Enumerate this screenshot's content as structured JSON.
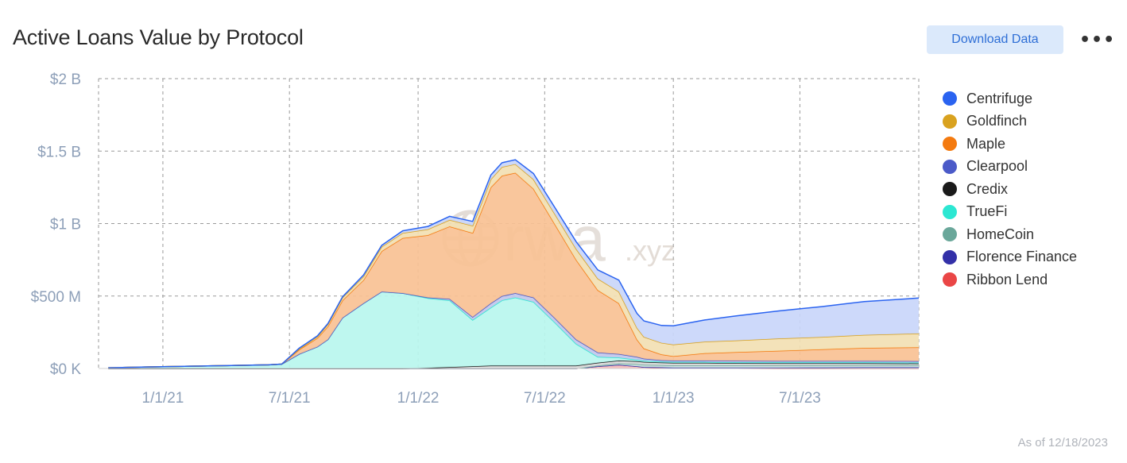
{
  "header": {
    "title": "Active Loans Value by Protocol",
    "download_label": "Download Data",
    "more_label": "•••"
  },
  "footer": {
    "as_of": "As of 12/18/2023"
  },
  "watermark": {
    "text": "rwa",
    "suffix": ".xyz"
  },
  "chart_data": {
    "type": "area",
    "stacked": true,
    "title": "Active Loans Value by Protocol",
    "xlabel": "",
    "ylabel": "",
    "x_axis": {
      "type": "date",
      "min": "2020-10-01",
      "max": "2023-12-18"
    },
    "ylim": [
      0,
      2000000000
    ],
    "y_ticks": [
      {
        "value": 0,
        "label": "$0 K"
      },
      {
        "value": 500000000,
        "label": "$500 M"
      },
      {
        "value": 1000000000,
        "label": "$1 B"
      },
      {
        "value": 1500000000,
        "label": "$1.5 B"
      },
      {
        "value": 2000000000,
        "label": "$2 B"
      }
    ],
    "x_ticks": [
      {
        "value": "2021-01-01",
        "label": "1/1/21"
      },
      {
        "value": "2021-07-01",
        "label": "7/1/21"
      },
      {
        "value": "2022-01-01",
        "label": "1/1/22"
      },
      {
        "value": "2022-07-01",
        "label": "7/1/22"
      },
      {
        "value": "2023-01-01",
        "label": "1/1/23"
      },
      {
        "value": "2023-07-01",
        "label": "7/1/23"
      }
    ],
    "grid": true,
    "legend_position": "right",
    "stack_order": [
      "Ribbon Lend",
      "Florence Finance",
      "HomeCoin",
      "Credix",
      "TrueFi",
      "Clearpool",
      "Maple",
      "Goldfinch",
      "Centrifuge"
    ],
    "x": [
      "2020-10-15",
      "2020-12-01",
      "2021-02-01",
      "2021-04-01",
      "2021-06-01",
      "2021-06-20",
      "2021-07-15",
      "2021-08-10",
      "2021-08-25",
      "2021-09-15",
      "2021-10-15",
      "2021-11-10",
      "2021-12-10",
      "2022-01-15",
      "2022-02-15",
      "2022-03-20",
      "2022-04-15",
      "2022-05-01",
      "2022-05-20",
      "2022-06-15",
      "2022-07-15",
      "2022-08-15",
      "2022-09-15",
      "2022-10-15",
      "2022-11-10",
      "2022-11-20",
      "2022-12-15",
      "2023-01-01",
      "2023-02-15",
      "2023-04-01",
      "2023-06-01",
      "2023-08-01",
      "2023-10-01",
      "2023-12-18"
    ],
    "series": [
      {
        "name": "Centrifuge",
        "color": "#2a63f0",
        "fill": "#c9d6fa",
        "values": [
          0,
          0,
          0,
          0,
          0,
          0,
          5,
          5,
          5,
          5,
          10,
          10,
          15,
          20,
          25,
          30,
          30,
          30,
          30,
          40,
          45,
          50,
          60,
          80,
          100,
          110,
          120,
          130,
          150,
          170,
          190,
          210,
          230,
          245
        ]
      },
      {
        "name": "Goldfinch",
        "color": "#d9a21f",
        "fill": "#f2dfb3",
        "values": [
          0,
          0,
          0,
          0,
          0,
          0,
          5,
          10,
          15,
          20,
          25,
          30,
          35,
          40,
          45,
          50,
          55,
          60,
          60,
          65,
          70,
          75,
          80,
          80,
          80,
          80,
          80,
          80,
          80,
          80,
          85,
          85,
          90,
          95
        ]
      },
      {
        "name": "Maple",
        "color": "#f47a0f",
        "fill": "#f9c194",
        "values": [
          0,
          0,
          0,
          0,
          0,
          0,
          30,
          60,
          90,
          120,
          160,
          280,
          380,
          430,
          500,
          580,
          800,
          830,
          830,
          750,
          650,
          550,
          430,
          350,
          120,
          70,
          40,
          30,
          50,
          60,
          70,
          80,
          90,
          95
        ]
      },
      {
        "name": "Clearpool",
        "color": "#4b5ac8",
        "fill": "#c2c7ec",
        "values": [
          0,
          0,
          0,
          0,
          0,
          0,
          0,
          0,
          0,
          0,
          0,
          0,
          0,
          5,
          10,
          20,
          30,
          30,
          30,
          30,
          30,
          30,
          30,
          25,
          20,
          15,
          10,
          10,
          10,
          10,
          10,
          10,
          10,
          10
        ]
      },
      {
        "name": "Credix",
        "color": "#1a1a1a",
        "fill": "#d8d8d8",
        "values": [
          0,
          0,
          0,
          0,
          0,
          0,
          0,
          0,
          0,
          0,
          0,
          0,
          0,
          5,
          10,
          15,
          20,
          20,
          20,
          20,
          20,
          20,
          20,
          20,
          20,
          20,
          18,
          18,
          18,
          16,
          15,
          14,
          13,
          12
        ]
      },
      {
        "name": "TrueFi",
        "color": "#2ce7d2",
        "fill": "#b9f6ee",
        "values": [
          5,
          10,
          15,
          20,
          25,
          30,
          100,
          150,
          200,
          350,
          450,
          530,
          520,
          480,
          460,
          320,
          400,
          450,
          470,
          440,
          300,
          150,
          40,
          20,
          10,
          8,
          6,
          6,
          6,
          6,
          6,
          6,
          6,
          6
        ]
      },
      {
        "name": "HomeCoin",
        "color": "#6aa79a",
        "fill": "#c9e2dc",
        "values": [
          0,
          0,
          0,
          0,
          0,
          0,
          0,
          0,
          0,
          0,
          0,
          0,
          0,
          0,
          0,
          0,
          0,
          0,
          0,
          0,
          0,
          0,
          5,
          10,
          15,
          15,
          15,
          15,
          15,
          15,
          15,
          15,
          15,
          15
        ]
      },
      {
        "name": "Florence Finance",
        "color": "#3330a8",
        "fill": "#c6c5ea",
        "values": [
          0,
          0,
          0,
          0,
          0,
          0,
          0,
          0,
          0,
          0,
          0,
          0,
          0,
          0,
          0,
          0,
          0,
          0,
          0,
          0,
          0,
          0,
          0,
          0,
          0,
          0,
          3,
          3,
          4,
          5,
          6,
          7,
          8,
          8
        ]
      },
      {
        "name": "Ribbon Lend",
        "color": "#ea4646",
        "fill": "#f6bcbc",
        "values": [
          0,
          0,
          0,
          0,
          0,
          0,
          0,
          0,
          0,
          0,
          0,
          0,
          0,
          0,
          0,
          0,
          0,
          0,
          0,
          0,
          0,
          0,
          15,
          25,
          15,
          10,
          5,
          3,
          2,
          1,
          0,
          0,
          0,
          0
        ]
      }
    ],
    "value_unit": "USD millions"
  }
}
